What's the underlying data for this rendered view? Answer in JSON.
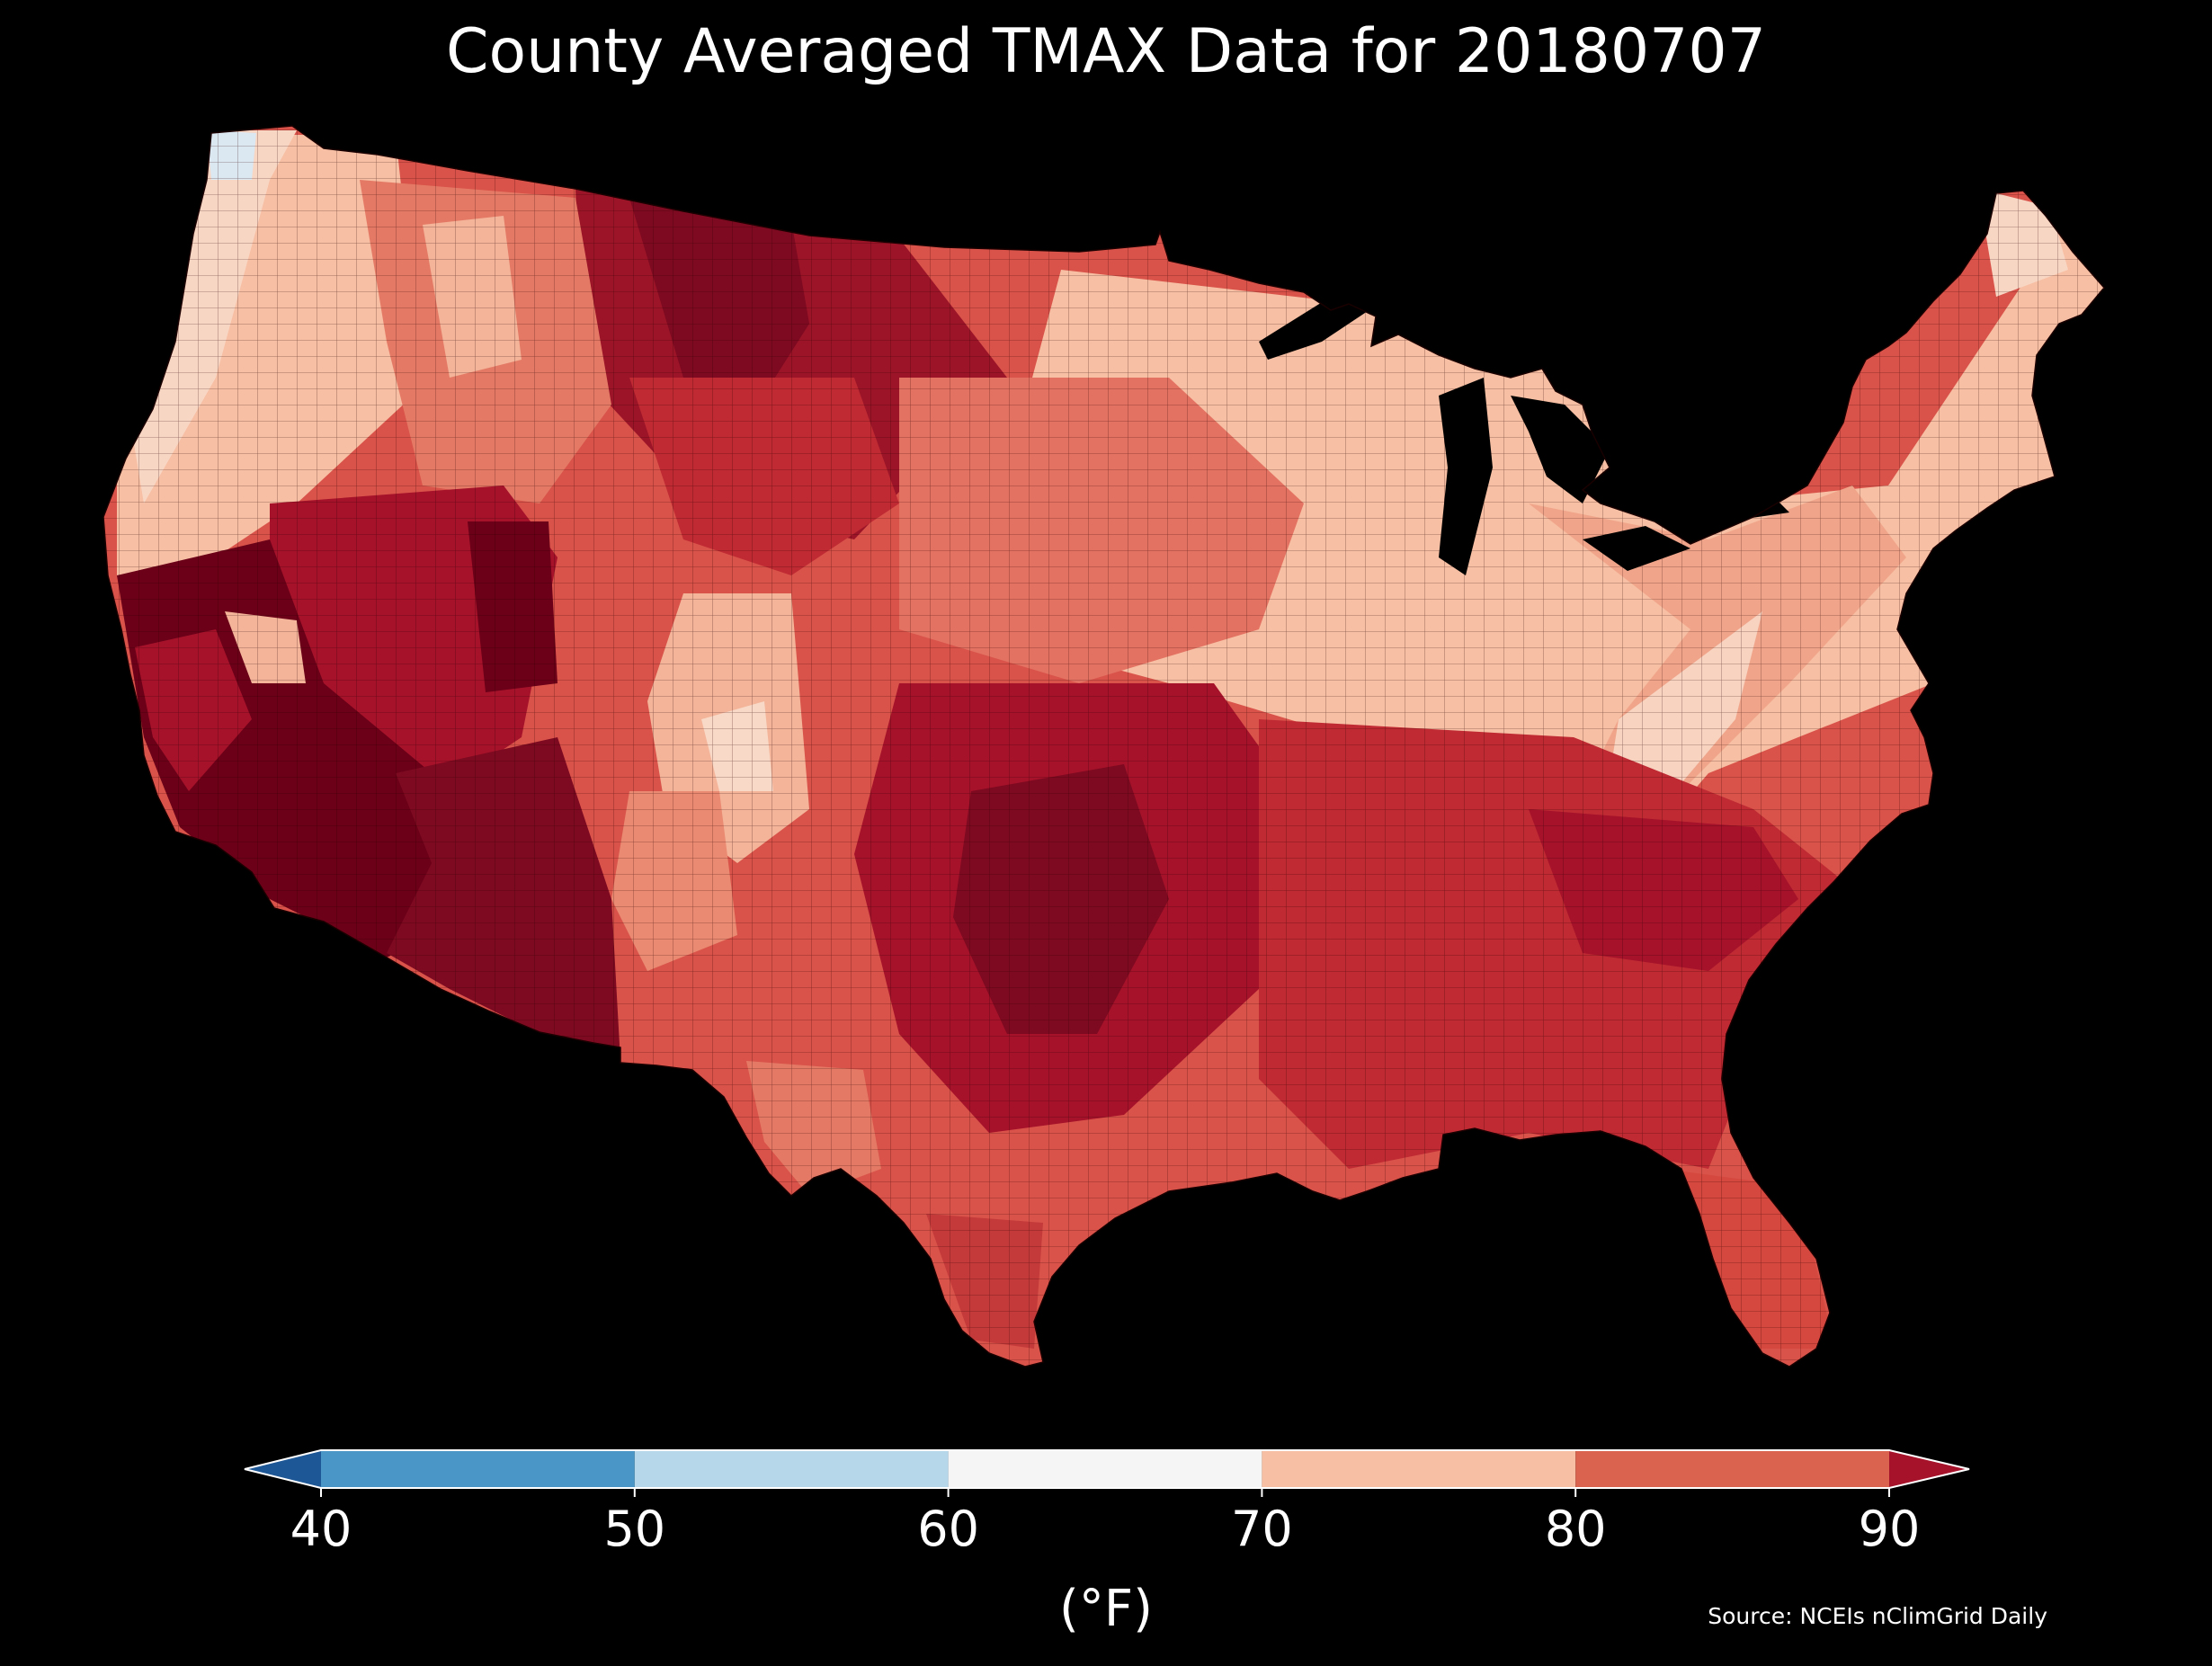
{
  "title": "County Averaged TMAX Data for 20180707",
  "source": "Source: NCEIs nClimGrid Daily",
  "colorbar": {
    "label": "(°F)",
    "ticks": [
      "40",
      "50",
      "60",
      "70",
      "80",
      "90"
    ],
    "bins": [
      {
        "range": "<40",
        "color": "#1d5796"
      },
      {
        "range": "40-50",
        "color": "#4a96c6"
      },
      {
        "range": "50-60",
        "color": "#b6d6ea"
      },
      {
        "range": "60-70",
        "color": "#f5f5f5"
      },
      {
        "range": "70-80",
        "color": "#f7bfa3"
      },
      {
        "range": "80-90",
        "color": "#d9634f"
      },
      {
        "range": ">90",
        "color": "#a5122a"
      }
    ]
  },
  "colors": {
    "background": "#000000",
    "darkest_red": "#6b0018",
    "dark_red": "#9b1428",
    "red": "#bf2a33",
    "mid_red": "#d9534a",
    "salmon": "#ea8a72",
    "light_salmon": "#f7bfa3",
    "near_white": "#f5f5f5",
    "cool_blue_tint": "#dbe7f1"
  }
}
